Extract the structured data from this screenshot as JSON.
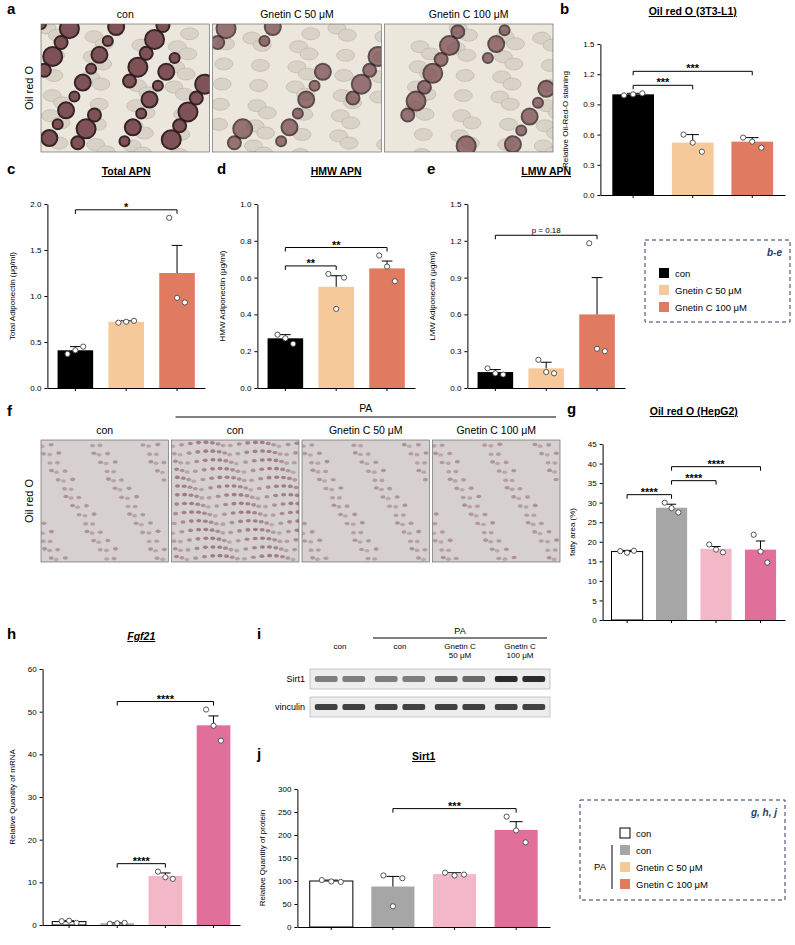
{
  "chart_data": [
    {
      "type": "bar",
      "letter": "b",
      "title": "Oil red O (3T3-L1)",
      "ylabel": "Relative Oil-Red-O staining",
      "categories": [
        null,
        null,
        null
      ],
      "values": [
        1.0,
        0.52,
        0.53
      ],
      "errors": [
        0.01,
        0.08,
        0.04
      ],
      "points": [
        [
          0.99,
          1.0,
          1.01
        ],
        [
          0.6,
          0.52,
          0.43
        ],
        [
          0.57,
          0.53,
          0.47
        ]
      ],
      "colors": [
        "#000000",
        "#f5c99a",
        "#e07b61"
      ],
      "grid": false,
      "ylim": [
        0,
        1.5
      ],
      "yticks": [
        {
          "value": 0,
          "label": "0.0"
        },
        0.3,
        0.6,
        0.9,
        1.2,
        1.5
      ],
      "annotations": [
        {
          "from": 0,
          "to": 1,
          "label": "***"
        },
        {
          "from": 0,
          "to": 2,
          "label": "***"
        }
      ]
    },
    {
      "type": "bar",
      "letter": "c",
      "title": "Total APN",
      "ylabel": "Total Adiponectin (μg/ml)",
      "categories": [
        null,
        null,
        null
      ],
      "values": [
        0.41,
        0.72,
        1.25
      ],
      "errors": [
        0.04,
        0.01,
        0.3
      ],
      "points": [
        [
          0.37,
          0.41,
          0.45
        ],
        [
          0.71,
          0.72,
          0.73
        ],
        [
          1.85,
          0.98,
          0.93
        ]
      ],
      "colors": [
        "#000000",
        "#f5c99a",
        "#e07b61"
      ],
      "grid": false,
      "ylim": [
        0,
        2.0
      ],
      "yticks": [
        {
          "value": 0,
          "label": "0.0"
        },
        0.5,
        {
          "value": 1,
          "label": "1.0"
        },
        1.5,
        {
          "value": 2,
          "label": "2.0"
        }
      ],
      "annotations": [
        {
          "from": 0,
          "to": 2,
          "label": "*"
        }
      ]
    },
    {
      "type": "bar",
      "letter": "d",
      "title": "HMW APN",
      "ylabel": "HMW Adiponectin (μg/ml)",
      "categories": [
        null,
        null,
        null
      ],
      "values": [
        0.27,
        0.55,
        0.65
      ],
      "errors": [
        0.02,
        0.06,
        0.04
      ],
      "points": [
        [
          0.29,
          0.27,
          0.24
        ],
        [
          0.62,
          0.43,
          0.6
        ],
        [
          0.72,
          0.66,
          0.58
        ]
      ],
      "colors": [
        "#000000",
        "#f5c99a",
        "#e07b61"
      ],
      "grid": false,
      "ylim": [
        0,
        1.0
      ],
      "yticks": [
        {
          "value": 0,
          "label": "0.0"
        },
        0.2,
        0.4,
        0.6,
        0.8,
        {
          "value": 1,
          "label": "1.0"
        }
      ],
      "annotations": [
        {
          "from": 0,
          "to": 1,
          "label": "**"
        },
        {
          "from": 0,
          "to": 2,
          "label": "**"
        }
      ]
    },
    {
      "type": "bar",
      "letter": "e",
      "title": "LMW APN",
      "ylabel": "LMW Adiponectin (μg/ml)",
      "categories": [
        null,
        null,
        null
      ],
      "values": [
        0.13,
        0.16,
        0.6
      ],
      "errors": [
        0.02,
        0.05,
        0.3
      ],
      "points": [
        [
          0.16,
          0.12,
          0.11
        ],
        [
          0.23,
          0.13,
          0.12
        ],
        [
          1.18,
          0.32,
          0.3
        ]
      ],
      "colors": [
        "#000000",
        "#f5c99a",
        "#e07b61"
      ],
      "grid": false,
      "ylim": [
        0,
        1.5
      ],
      "yticks": [
        {
          "value": 0,
          "label": "0.0"
        },
        0.3,
        0.6,
        0.9,
        1.2,
        1.5
      ],
      "annotations": [
        {
          "from": 0,
          "to": 2,
          "label": "p = 0.18"
        }
      ]
    },
    {
      "type": "bar",
      "letter": "g",
      "title": "Oil red O (HepG2)",
      "ylabel": "fatty area (%)",
      "categories": [
        null,
        null,
        null,
        null
      ],
      "values": [
        17.5,
        28.7,
        18.2,
        18.0
      ],
      "errors": [
        0.3,
        0.9,
        0.6,
        2.2
      ],
      "points": [
        [
          17.6,
          17.2,
          17.7
        ],
        [
          30.0,
          28.6,
          27.5
        ],
        [
          19.3,
          18.0,
          17.3
        ],
        [
          21.8,
          17.5,
          14.7
        ]
      ],
      "colors": [
        "#ffffff",
        "#a6a6a6",
        "#f2b8c8",
        "#e0709a"
      ],
      "grid": false,
      "ylim": [
        0,
        45
      ],
      "yticks": [
        0,
        5,
        10,
        15,
        20,
        25,
        30,
        35,
        40,
        45
      ],
      "annotations": [
        {
          "from": 0,
          "to": 1,
          "label": "****"
        },
        {
          "from": 1,
          "to": 2,
          "label": "****"
        },
        {
          "from": 1,
          "to": 3,
          "label": "****"
        }
      ]
    },
    {
      "type": "bar",
      "letter": "h",
      "title": "Fgf21",
      "ylabel": "Relative Quantity of mRNA",
      "categories": [
        null,
        null,
        null,
        null
      ],
      "values": [
        0.8,
        0.4,
        11.5,
        46.8
      ],
      "errors": [
        0.2,
        0.1,
        0.7,
        2.2
      ],
      "points": [
        [
          0.9,
          1.0,
          0.5
        ],
        [
          0.3,
          0.4,
          0.5
        ],
        [
          12.5,
          11.2,
          10.8
        ],
        [
          50.5,
          46.7,
          43.2
        ]
      ],
      "colors": [
        "#ffffff",
        "#a6a6a6",
        "#f2b8c8",
        "#e0709a"
      ],
      "grid": false,
      "ylim": [
        0,
        60
      ],
      "yticks": [
        0,
        10,
        20,
        30,
        40,
        50,
        60
      ],
      "annotations": [
        {
          "from": 1,
          "to": 2,
          "label": "****"
        },
        {
          "from": 1,
          "to": 3,
          "label": "****"
        }
      ]
    },
    {
      "type": "bar",
      "letter": "j",
      "title": "Sirt1",
      "ylabel": "Relative Quantity of protein",
      "categories": [
        null,
        null,
        null,
        null
      ],
      "values": [
        100,
        88,
        115,
        211
      ],
      "errors": [
        2,
        22,
        3,
        18
      ],
      "points": [
        [
          102,
          99,
          98
        ],
        [
          112,
          45,
          106
        ],
        [
          118,
          112,
          114
        ],
        [
          240,
          210,
          184
        ]
      ],
      "colors": [
        "#ffffff",
        "#a6a6a6",
        "#f2b8c8",
        "#e0709a"
      ],
      "grid": false,
      "ylim": [
        0,
        300
      ],
      "yticks": [
        0,
        50,
        100,
        150,
        200,
        250,
        300
      ],
      "annotations": [
        {
          "from": 1,
          "to": 3,
          "label": "***"
        }
      ]
    }
  ],
  "images": [
    {
      "letter": "a",
      "side_label": "Oil red O",
      "columns": [
        "con",
        "Gnetin C 50 μM",
        "Gnetin C 100 μM"
      ]
    },
    {
      "letter": "f",
      "side_label": "Oil red O",
      "columns": [
        "con"
      ],
      "group": {
        "label": "PA",
        "columns": [
          "con",
          "Gnetin C 50 μM",
          "Gnetin C 100 μM"
        ]
      }
    }
  ],
  "blot": {
    "letter": "i",
    "lanes": [
      "con"
    ],
    "group": {
      "label": "PA",
      "lanes": [
        "con",
        "Gnetin C 50 μM",
        "Gnetin C 100 μM"
      ]
    },
    "rows": [
      "Sirt1",
      "vinculin"
    ]
  },
  "legends": [
    {
      "title": "b-e",
      "entries": [
        {
          "name": "con",
          "color": "#000000"
        },
        {
          "name": "Gnetin C 50 μM",
          "color": "#f5c99a"
        },
        {
          "name": "Gnetin C 100 μM",
          "color": "#e07b61"
        }
      ]
    },
    {
      "title": "g, h, j",
      "entries": [
        {
          "name": "con",
          "color": "#ffffff"
        }
      ],
      "group": {
        "label": "PA",
        "entries": [
          {
            "name": "con",
            "color": "#a6a6a6"
          },
          {
            "name": "Gnetin C 50 μM",
            "color": "#f5c99a"
          },
          {
            "name": "Gnetin C 100 μM",
            "color": "#e07b61"
          }
        ]
      }
    }
  ]
}
